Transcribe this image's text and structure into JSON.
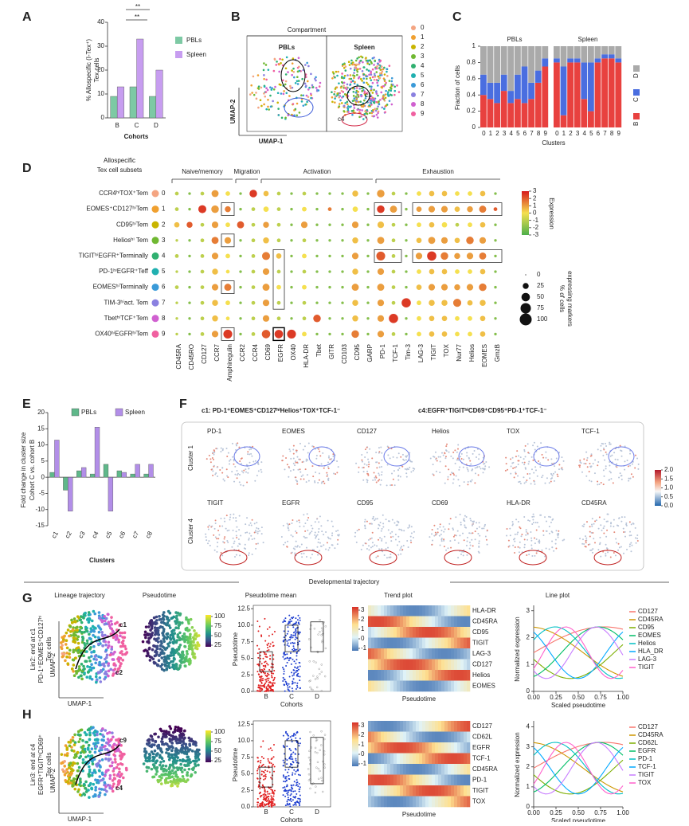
{
  "panel_letters": [
    "A",
    "B",
    "C",
    "D",
    "E",
    "F",
    "G",
    "H"
  ],
  "chart_data": [
    {
      "type": "bar",
      "categories": [
        "B",
        "C",
        "D"
      ],
      "series": [
        {
          "name": "PBLs",
          "color": "#7dc9a4",
          "values": [
            9,
            13,
            9
          ]
        },
        {
          "name": "Spleen",
          "color": "#c79df0",
          "values": [
            13,
            33,
            20
          ]
        }
      ],
      "ylim": [
        0,
        40
      ],
      "yticks": [
        0,
        10,
        20,
        30,
        40
      ],
      "ylabel": [
        "% Allospecific (I-Tex⁺)",
        "Tex cells"
      ],
      "xlabel": "Cohorts",
      "annotations": [
        "**",
        "**"
      ]
    },
    {
      "type": "stacked_bar",
      "facets": [
        "PBLs",
        "Spleen"
      ],
      "categories": [
        "0",
        "1",
        "2",
        "3",
        "4",
        "5",
        "6",
        "7",
        "8",
        "9"
      ],
      "series": [
        {
          "name": "B",
          "color": "#e8413f",
          "values": [
            [
              0.4,
              0.35,
              0.3,
              0.45,
              0.3,
              0.35,
              0.3,
              0.35,
              0.55,
              0.75
            ],
            [
              0.8,
              0.15,
              0.8,
              0.8,
              0.35,
              0.2,
              0.8,
              0.85,
              0.85,
              0.8
            ]
          ]
        },
        {
          "name": "C",
          "color": "#4a6ee0",
          "values": [
            [
              0.25,
              0.2,
              0.25,
              0.2,
              0.15,
              0.3,
              0.45,
              0.2,
              0.15,
              0.1
            ],
            [
              0.05,
              0.6,
              0.05,
              0.05,
              0.45,
              0.6,
              0.05,
              0.05,
              0.05,
              0.05
            ]
          ]
        },
        {
          "name": "D",
          "color": "#aaaaaa",
          "values": [
            [
              0.35,
              0.45,
              0.45,
              0.35,
              0.55,
              0.35,
              0.25,
              0.45,
              0.3,
              0.15
            ],
            [
              0.15,
              0.25,
              0.15,
              0.15,
              0.2,
              0.2,
              0.15,
              0.1,
              0.1,
              0.15
            ]
          ]
        }
      ],
      "ylim": [
        0,
        1
      ],
      "yticks": [
        0,
        0.2,
        0.4,
        0.6,
        0.8,
        1
      ],
      "ylabel": "Fraction of cells",
      "xlabel": "Clusters"
    },
    {
      "type": "bar",
      "categories": [
        "c1",
        "c2",
        "c3",
        "c4",
        "c5",
        "c6",
        "c7",
        "c8"
      ],
      "series": [
        {
          "name": "PBLs",
          "color": "#5fb88a",
          "values": [
            1.5,
            -4,
            2,
            1,
            4,
            2,
            1,
            1
          ]
        },
        {
          "name": "Spleen",
          "color": "#b28ee8",
          "values": [
            11.5,
            -10.5,
            3,
            15.5,
            -10.5,
            1.5,
            4,
            4
          ]
        }
      ],
      "ylim": [
        -15,
        20
      ],
      "yticks": [
        -15,
        -10,
        -5,
        0,
        5,
        10,
        15,
        20
      ],
      "ylabel": [
        "Fold change in cluster size",
        "Cohort C vs. cohort B"
      ],
      "xlabel": "Clusters"
    },
    {
      "type": "dot",
      "header": [
        "Allospecific",
        "Tex cell subsets"
      ],
      "groups": [
        {
          "name": "Naive/memory",
          "from": 0,
          "to": 4
        },
        {
          "name": "Migration",
          "from": 5,
          "to": 6
        },
        {
          "name": "Activation",
          "from": 7,
          "to": 15
        },
        {
          "name": "Exhaustion",
          "from": 16,
          "to": 25
        }
      ],
      "columns": [
        "CD45RA",
        "CD45RO",
        "CD127",
        "CCR7",
        "Amphiregulin",
        "CCR2",
        "CCR4",
        "CD69",
        "EGFR",
        "OX40",
        "HLA-DR",
        "Tbet",
        "GITR",
        "CD103",
        "CD95",
        "GARP",
        "PD-1",
        "TCF-1",
        "Tim-3",
        "LAG-3",
        "TIGIT",
        "TOX",
        "Nur77",
        "Helios",
        "EOMES",
        "GmzB"
      ],
      "rows": [
        "CCR4ʰⁱTOX⁺Tem",
        "EOMES⁺CD127ʰⁱTem",
        "CD95ʰⁱTem",
        "Heliosʰⁱ Tem",
        "TIGITʰⁱEGFR⁺Terminally",
        "PD-1ʰⁱEGFR⁺Teff",
        "EOMESʰⁱTerminally",
        "TIM-3ʰⁱact. Tem",
        "TbetʰⁱTCF⁺Tem",
        "OX40ʰⁱEGFRʰⁱTem"
      ],
      "row_ids": [
        "0",
        "1",
        "2",
        "3",
        "4",
        "5",
        "6",
        "7",
        "8",
        "9"
      ],
      "pct": [
        [
          10,
          5,
          10,
          35,
          15,
          5,
          40,
          20,
          10,
          5,
          10,
          5,
          5,
          5,
          25,
          5,
          40,
          10,
          5,
          15,
          20,
          20,
          15,
          15,
          20,
          5
        ],
        [
          10,
          5,
          45,
          40,
          25,
          5,
          10,
          20,
          10,
          5,
          15,
          5,
          10,
          5,
          20,
          5,
          40,
          35,
          5,
          20,
          30,
          30,
          20,
          25,
          35,
          10
        ],
        [
          20,
          25,
          10,
          30,
          15,
          35,
          10,
          25,
          10,
          5,
          30,
          5,
          5,
          5,
          30,
          5,
          30,
          10,
          5,
          15,
          20,
          20,
          10,
          15,
          20,
          5
        ],
        [
          5,
          5,
          10,
          35,
          30,
          5,
          10,
          25,
          10,
          5,
          10,
          5,
          5,
          5,
          25,
          5,
          35,
          10,
          5,
          20,
          35,
          30,
          20,
          40,
          30,
          5
        ],
        [
          10,
          5,
          10,
          30,
          15,
          5,
          10,
          45,
          20,
          5,
          15,
          5,
          5,
          5,
          30,
          5,
          55,
          10,
          5,
          30,
          60,
          40,
          25,
          30,
          35,
          5
        ],
        [
          5,
          5,
          10,
          25,
          10,
          5,
          10,
          30,
          10,
          5,
          10,
          5,
          5,
          5,
          25,
          5,
          30,
          10,
          5,
          15,
          20,
          20,
          15,
          15,
          20,
          5
        ],
        [
          10,
          5,
          10,
          30,
          35,
          5,
          10,
          35,
          15,
          5,
          15,
          5,
          5,
          5,
          35,
          5,
          35,
          10,
          5,
          20,
          30,
          30,
          25,
          30,
          40,
          5
        ],
        [
          5,
          5,
          10,
          25,
          15,
          5,
          10,
          30,
          10,
          5,
          10,
          5,
          5,
          5,
          25,
          5,
          30,
          10,
          60,
          15,
          25,
          25,
          45,
          20,
          25,
          5
        ],
        [
          5,
          5,
          10,
          25,
          10,
          5,
          10,
          30,
          10,
          5,
          10,
          40,
          5,
          5,
          25,
          5,
          30,
          60,
          5,
          15,
          20,
          20,
          15,
          15,
          20,
          5
        ],
        [
          5,
          5,
          10,
          30,
          55,
          5,
          10,
          50,
          50,
          55,
          15,
          5,
          5,
          5,
          40,
          5,
          30,
          10,
          5,
          15,
          20,
          20,
          15,
          15,
          20,
          5
        ]
      ],
      "expr": [
        [
          -1,
          -2,
          -1,
          1,
          0,
          -2,
          2.5,
          0.5,
          -1,
          -2,
          -1,
          -2,
          -2,
          -2,
          0.5,
          -2,
          1,
          -1,
          -2,
          0,
          0.5,
          0.5,
          0,
          0,
          0.5,
          -2
        ],
        [
          -1,
          -2,
          2.5,
          1,
          1.5,
          -2,
          -1,
          0,
          -1,
          -2,
          0,
          -2,
          1.5,
          -2,
          0,
          -2,
          2.5,
          1,
          -2,
          1,
          1,
          1,
          0.5,
          1,
          1.5,
          2
        ],
        [
          0.5,
          2,
          -1,
          1,
          0,
          2,
          -1,
          1,
          -1,
          -2,
          1,
          -2,
          -2,
          -2,
          1,
          -2,
          0.5,
          -1,
          -2,
          0,
          0.5,
          0,
          -1,
          0,
          0.5,
          -2
        ],
        [
          -1,
          -2,
          -1,
          1.5,
          1,
          -2,
          -1,
          0.5,
          -1,
          -2,
          -1,
          -2,
          -2,
          -2,
          0.5,
          -2,
          1,
          -1,
          -2,
          0.5,
          1,
          1,
          0.5,
          1.5,
          1,
          -2
        ],
        [
          -1,
          -2,
          -1,
          1,
          0,
          -2,
          -1,
          1.5,
          0.5,
          -2,
          0,
          -2,
          -2,
          -2,
          1,
          -2,
          2,
          -1,
          -2,
          1,
          2.5,
          1.5,
          1,
          1,
          1.5,
          -2
        ],
        [
          -1,
          -2,
          -1,
          0.5,
          0,
          -2,
          -1,
          1,
          -1,
          -2,
          -1,
          -2,
          -2,
          -2,
          0.5,
          -2,
          1,
          -1,
          -2,
          0,
          0.5,
          0.5,
          0,
          0,
          0.5,
          -2
        ],
        [
          -1,
          -2,
          -1,
          1,
          1.5,
          -2,
          -1,
          1,
          0,
          -2,
          0,
          -2,
          -2,
          -2,
          1,
          -2,
          1,
          -1,
          -2,
          0.5,
          1,
          1,
          1,
          1,
          1.5,
          -2
        ],
        [
          -1,
          -2,
          -1,
          0.5,
          0,
          -2,
          -1,
          1,
          -1,
          -2,
          -1,
          -2,
          -2,
          -2,
          0.5,
          -2,
          1,
          -1,
          2.5,
          0,
          0.5,
          0.5,
          1.5,
          0.5,
          0.5,
          -2
        ],
        [
          -1,
          -2,
          -1,
          0.5,
          0,
          -2,
          -1,
          1,
          -1,
          -2,
          -1,
          2,
          -2,
          -2,
          0.5,
          -2,
          1,
          2.5,
          -2,
          0,
          0.5,
          0.5,
          0,
          0,
          0.5,
          -2
        ],
        [
          -1,
          -2,
          -1,
          1,
          2.5,
          -2,
          -1,
          2,
          2.5,
          2.5,
          0,
          -2,
          -2,
          -2,
          1.5,
          -2,
          1,
          -1,
          -2,
          0,
          0.5,
          0.5,
          0,
          0,
          0.5,
          -2
        ]
      ],
      "expr_lim": [
        -3,
        3
      ],
      "expr_ticks": [
        3,
        2,
        1,
        0,
        -1,
        -2,
        -3
      ],
      "expr_title": "Expression",
      "size_ticks": [
        0,
        25,
        50,
        75,
        100
      ],
      "size_title": [
        "% of cells",
        "expressing markers"
      ]
    }
  ],
  "umap": {
    "title": "Compartment",
    "facets": [
      "PBLs",
      "Spleen"
    ],
    "xlabel": "UMAP-1",
    "ylabel": "UMAP-2",
    "clusters": [
      "0",
      "1",
      "2",
      "3",
      "4",
      "5",
      "6",
      "7",
      "8",
      "9"
    ],
    "colors": [
      "#f4a582",
      "#f0a030",
      "#c8b400",
      "#70b832",
      "#30b070",
      "#20b0b0",
      "#3a9ad8",
      "#8a80e0",
      "#d060d0",
      "#f060a0"
    ],
    "tags": [
      "c1",
      "c4"
    ]
  },
  "features": {
    "titles": [
      "c1: PD-1⁺EOMES⁺CD127ʰⁱHelios⁺TOX⁺TCF-1⁻",
      "c4:EGFR⁺TIGITʰⁱCD69⁺CD95⁺PD-1⁺TCF-1⁻"
    ],
    "row_labels": [
      "Cluster 1",
      "Cluster 4"
    ],
    "genes": [
      [
        "PD-1",
        "EOMES",
        "CD127",
        "Helios",
        "TOX",
        "TCF-1"
      ],
      [
        "TIGIT",
        "EGFR",
        "CD95",
        "CD69",
        "HLA-DR",
        "CD45RA"
      ]
    ],
    "scale_lim": [
      0,
      2
    ],
    "scale_ticks": [
      {
        "value": 2,
        "label": "2.0"
      },
      {
        "value": 1.5,
        "label": "1.5"
      },
      {
        "value": 1,
        "label": "1.0"
      },
      {
        "value": 0.5,
        "label": "0.5"
      },
      {
        "value": 0,
        "label": "0.0"
      }
    ]
  },
  "trajectory": {
    "title": "Developmental trajectory",
    "headers": [
      "Lineage trajectory",
      "Pseudotime",
      "Pseudotime mean",
      "Trend plot",
      "Line plot"
    ],
    "umap_x": "UMAP-1",
    "umap_y": "UMAP-2",
    "pt_ticks": [
      100,
      75,
      50,
      25
    ],
    "strip": {
      "ylabel": "Pseudotime",
      "xlabel": "Cohorts",
      "categories": [
        "B",
        "C",
        "D"
      ],
      "ylim": [
        0,
        13
      ],
      "yticks": [
        {
          "value": 0,
          "label": "0.0"
        },
        {
          "value": 2.5,
          "label": "2.5"
        },
        {
          "value": 5,
          "label": "5.0"
        },
        {
          "value": 7.5,
          "label": "7.5"
        },
        {
          "value": 10,
          "label": "10.0"
        },
        {
          "value": 12.5,
          "label": "12.5"
        }
      ]
    },
    "heat_ticks": [
      3,
      2,
      1,
      0,
      -1
    ],
    "heat_xlabel": "Pseudotime",
    "line": {
      "ylabel": "Normalized expression",
      "xlabel": "Scaled pseudotime",
      "xticks": [
        {
          "value": 0,
          "label": "0.00"
        },
        {
          "value": 0.25,
          "label": "0.25"
        },
        {
          "value": 0.5,
          "label": "0.50"
        },
        {
          "value": 0.75,
          "label": "0.75"
        },
        {
          "value": 1,
          "label": "1.00"
        }
      ]
    },
    "rows": [
      {
        "label": [
          "Lin2: end at c1",
          "PD-1⁺EOMES⁺CD127ʰⁱ",
          "Tex cells"
        ],
        "tags": [
          "c1",
          "c2"
        ],
        "genes": [
          "HLA-DR",
          "CD45RA",
          "CD95",
          "TIGIT",
          "LAG-3",
          "CD127",
          "Helios",
          "EOMES"
        ],
        "legend": [
          {
            "name": "CD127",
            "color": "#f8766d"
          },
          {
            "name": "CD45RA",
            "color": "#cd9600"
          },
          {
            "name": "CD95",
            "color": "#7cae00"
          },
          {
            "name": "EOMES",
            "color": "#00be67"
          },
          {
            "name": "Helios",
            "color": "#00bfc4"
          },
          {
            "name": "HLA_DR",
            "color": "#00a9ff"
          },
          {
            "name": "LAG-3",
            "color": "#c77cff"
          },
          {
            "name": "TIGIT",
            "color": "#ff61cc"
          }
        ],
        "ylim": [
          0,
          3.2
        ],
        "yticks": [
          0,
          1,
          2,
          3
        ]
      },
      {
        "label": [
          "Lin3: end at c4",
          "EGFR⁺TIGITʰⁱCD69⁺",
          "Tex cells"
        ],
        "tags": [
          "c9",
          "c4"
        ],
        "genes": [
          "CD127",
          "CD62L",
          "EGFR",
          "TCF-1",
          "CD45RA",
          "PD-1",
          "TIGIT",
          "TOX"
        ],
        "legend": [
          {
            "name": "CD127",
            "color": "#f8766d"
          },
          {
            "name": "CD45RA",
            "color": "#cd9600"
          },
          {
            "name": "CD62L",
            "color": "#7cae00"
          },
          {
            "name": "EGFR",
            "color": "#00be67"
          },
          {
            "name": "PD-1",
            "color": "#00bfc4"
          },
          {
            "name": "TCF-1",
            "color": "#00a9ff"
          },
          {
            "name": "TIGIT",
            "color": "#c77cff"
          },
          {
            "name": "TOX",
            "color": "#ff61cc"
          }
        ],
        "ylim": [
          0,
          4.3
        ],
        "yticks": [
          0,
          1,
          2,
          3,
          4
        ]
      }
    ]
  }
}
